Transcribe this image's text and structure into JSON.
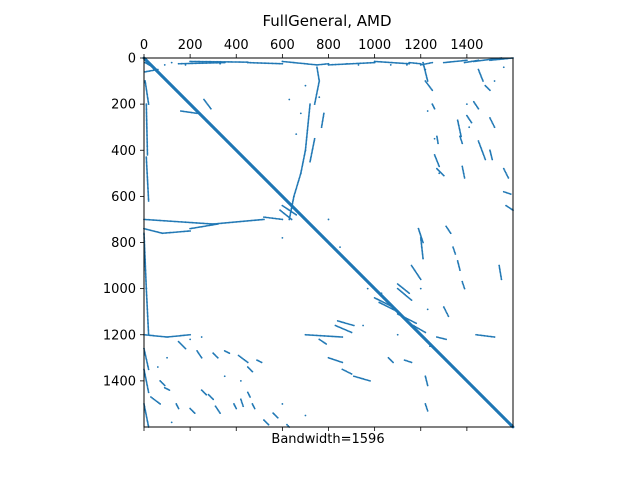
{
  "chart_data": {
    "type": "scatter",
    "title": "FullGeneral, AMD",
    "xlabel": "Bandwidth=1596",
    "ylabel": "",
    "xlim": [
      0,
      1600
    ],
    "ylim": [
      1600,
      0
    ],
    "matrix_size": 1600,
    "x_ticks_top": [
      0,
      200,
      400,
      600,
      800,
      1000,
      1200,
      1400
    ],
    "x_ticks_bottom": [
      0,
      200,
      400,
      600,
      800,
      1000,
      1200,
      1400
    ],
    "y_ticks": [
      0,
      200,
      400,
      600,
      800,
      1000,
      1200,
      1400
    ],
    "grid": false,
    "marker_color": "#1f77b4",
    "series": [
      {
        "structure": "main-diagonal",
        "segments": [
          [
            0,
            0,
            1600,
            1600
          ]
        ]
      },
      {
        "structure": "dense-line-fragments",
        "segments": [
          [
            5,
            20,
            40,
            40
          ],
          [
            5,
            60,
            60,
            50
          ],
          [
            5,
            100,
            20,
            200
          ],
          [
            10,
            200,
            15,
            420
          ],
          [
            10,
            430,
            20,
            620
          ],
          [
            0,
            700,
            300,
            720
          ],
          [
            0,
            740,
            80,
            760
          ],
          [
            80,
            760,
            200,
            750
          ],
          [
            200,
            740,
            320,
            720
          ],
          [
            300,
            720,
            520,
            700
          ],
          [
            520,
            690,
            600,
            700
          ],
          [
            0,
            760,
            10,
            1000
          ],
          [
            10,
            1000,
            20,
            1200
          ],
          [
            0,
            1200,
            100,
            1210
          ],
          [
            100,
            1210,
            200,
            1200
          ],
          [
            0,
            1260,
            20,
            1350
          ],
          [
            0,
            1350,
            20,
            1450
          ],
          [
            0,
            1500,
            20,
            1600
          ],
          [
            150,
            25,
            350,
            20
          ],
          [
            200,
            15,
            450,
            18
          ],
          [
            450,
            20,
            600,
            25
          ],
          [
            600,
            15,
            750,
            30
          ],
          [
            750,
            30,
            800,
            25
          ],
          [
            800,
            30,
            1000,
            20
          ],
          [
            1000,
            15,
            1150,
            25
          ],
          [
            1150,
            20,
            1200,
            25
          ],
          [
            1200,
            30,
            1250,
            20
          ],
          [
            1300,
            20,
            1400,
            10
          ],
          [
            1390,
            20,
            1450,
            10
          ],
          [
            1430,
            15,
            1550,
            0
          ],
          [
            1500,
            10,
            1600,
            0
          ],
          [
            750,
            40,
            760,
            100
          ],
          [
            760,
            100,
            740,
            200
          ],
          [
            720,
            200,
            700,
            400
          ],
          [
            700,
            400,
            680,
            500
          ],
          [
            680,
            500,
            650,
            600
          ],
          [
            650,
            600,
            630,
            700
          ],
          [
            780,
            240,
            770,
            300
          ],
          [
            740,
            350,
            720,
            450
          ],
          [
            600,
            640,
            660,
            680
          ],
          [
            590,
            660,
            640,
            700
          ],
          [
            260,
            180,
            290,
            220
          ],
          [
            160,
            230,
            230,
            240
          ],
          [
            1210,
            20,
            1230,
            100
          ],
          [
            1220,
            100,
            1250,
            140
          ],
          [
            1250,
            200,
            1260,
            220
          ],
          [
            1270,
            340,
            1275,
            370
          ],
          [
            1260,
            420,
            1280,
            470
          ],
          [
            1270,
            480,
            1300,
            510
          ],
          [
            1450,
            50,
            1470,
            100
          ],
          [
            1480,
            120,
            1500,
            140
          ],
          [
            1430,
            190,
            1450,
            220
          ],
          [
            1400,
            250,
            1420,
            280
          ],
          [
            1500,
            260,
            1520,
            300
          ],
          [
            1450,
            360,
            1480,
            440
          ],
          [
            1500,
            400,
            1510,
            440
          ],
          [
            1560,
            480,
            1580,
            520
          ],
          [
            1560,
            580,
            1590,
            590
          ],
          [
            1570,
            640,
            1600,
            660
          ],
          [
            1370,
            340,
            1380,
            370
          ],
          [
            1380,
            470,
            1390,
            520
          ],
          [
            1310,
            730,
            1330,
            760
          ],
          [
            1340,
            820,
            1350,
            850
          ],
          [
            1360,
            880,
            1370,
            920
          ],
          [
            1380,
            970,
            1390,
            1000
          ],
          [
            1300,
            1080,
            1320,
            1120
          ],
          [
            1270,
            1210,
            1310,
            1220
          ],
          [
            1440,
            1200,
            1520,
            1210
          ],
          [
            1200,
            780,
            1210,
            870
          ],
          [
            1190,
            740,
            1210,
            800
          ],
          [
            1160,
            900,
            1200,
            960
          ],
          [
            1100,
            980,
            1150,
            1020
          ],
          [
            1100,
            1000,
            1160,
            1050
          ],
          [
            1000,
            1040,
            1080,
            1080
          ],
          [
            1020,
            1060,
            1100,
            1100
          ],
          [
            1100,
            1110,
            1180,
            1150
          ],
          [
            1150,
            1150,
            1220,
            1190
          ],
          [
            840,
            1140,
            910,
            1160
          ],
          [
            830,
            1160,
            900,
            1190
          ],
          [
            700,
            1200,
            860,
            1210
          ],
          [
            760,
            1220,
            790,
            1240
          ],
          [
            800,
            1300,
            860,
            1320
          ],
          [
            860,
            1350,
            900,
            1370
          ],
          [
            910,
            1380,
            980,
            1400
          ],
          [
            1060,
            1300,
            1080,
            1320
          ],
          [
            1130,
            1310,
            1160,
            1320
          ],
          [
            1220,
            1380,
            1230,
            1420
          ],
          [
            1220,
            1500,
            1230,
            1530
          ],
          [
            150,
            1230,
            180,
            1260
          ],
          [
            230,
            1270,
            250,
            1300
          ],
          [
            300,
            1280,
            320,
            1300
          ],
          [
            350,
            1270,
            370,
            1280
          ],
          [
            410,
            1290,
            450,
            1320
          ],
          [
            490,
            1310,
            510,
            1320
          ],
          [
            450,
            1340,
            470,
            1360
          ],
          [
            90,
            1430,
            110,
            1440
          ],
          [
            30,
            1470,
            70,
            1500
          ],
          [
            70,
            1400,
            90,
            1420
          ],
          [
            140,
            1500,
            150,
            1520
          ],
          [
            200,
            1520,
            220,
            1540
          ],
          [
            250,
            1440,
            270,
            1460
          ],
          [
            280,
            1460,
            300,
            1480
          ],
          [
            310,
            1510,
            330,
            1540
          ],
          [
            390,
            1500,
            400,
            1520
          ],
          [
            420,
            1480,
            430,
            1510
          ],
          [
            450,
            1450,
            460,
            1470
          ],
          [
            470,
            1500,
            480,
            1520
          ],
          [
            520,
            1570,
            540,
            1590
          ],
          [
            560,
            1540,
            580,
            1560
          ],
          [
            620,
            1590,
            630,
            1600
          ],
          [
            1360,
            270,
            1375,
            340
          ],
          [
            1540,
            900,
            1550,
            960
          ]
        ]
      },
      {
        "structure": "isolated-entries",
        "points": [
          [
            90,
            30
          ],
          [
            120,
            20
          ],
          [
            180,
            30
          ],
          [
            330,
            25
          ],
          [
            880,
            25
          ],
          [
            930,
            30
          ],
          [
            1070,
            30
          ],
          [
            1140,
            30
          ],
          [
            1220,
            50
          ],
          [
            1230,
            230
          ],
          [
            1260,
            350
          ],
          [
            1280,
            500
          ],
          [
            1400,
            200
          ],
          [
            1410,
            300
          ],
          [
            1520,
            100
          ],
          [
            1560,
            40
          ],
          [
            630,
            180
          ],
          [
            680,
            240
          ],
          [
            660,
            330
          ],
          [
            700,
            120
          ],
          [
            760,
            170
          ],
          [
            600,
            780
          ],
          [
            800,
            700
          ],
          [
            850,
            820
          ],
          [
            900,
            900
          ],
          [
            970,
            1000
          ],
          [
            1030,
            1020
          ],
          [
            1200,
            1000
          ],
          [
            1230,
            1090
          ],
          [
            1240,
            1250
          ],
          [
            1100,
            1200
          ],
          [
            950,
            1160
          ],
          [
            100,
            1300
          ],
          [
            60,
            1340
          ],
          [
            200,
            1220
          ],
          [
            250,
            1210
          ],
          [
            350,
            1380
          ],
          [
            420,
            1400
          ],
          [
            600,
            1500
          ],
          [
            700,
            1550
          ],
          [
            120,
            1580
          ]
        ]
      }
    ]
  }
}
